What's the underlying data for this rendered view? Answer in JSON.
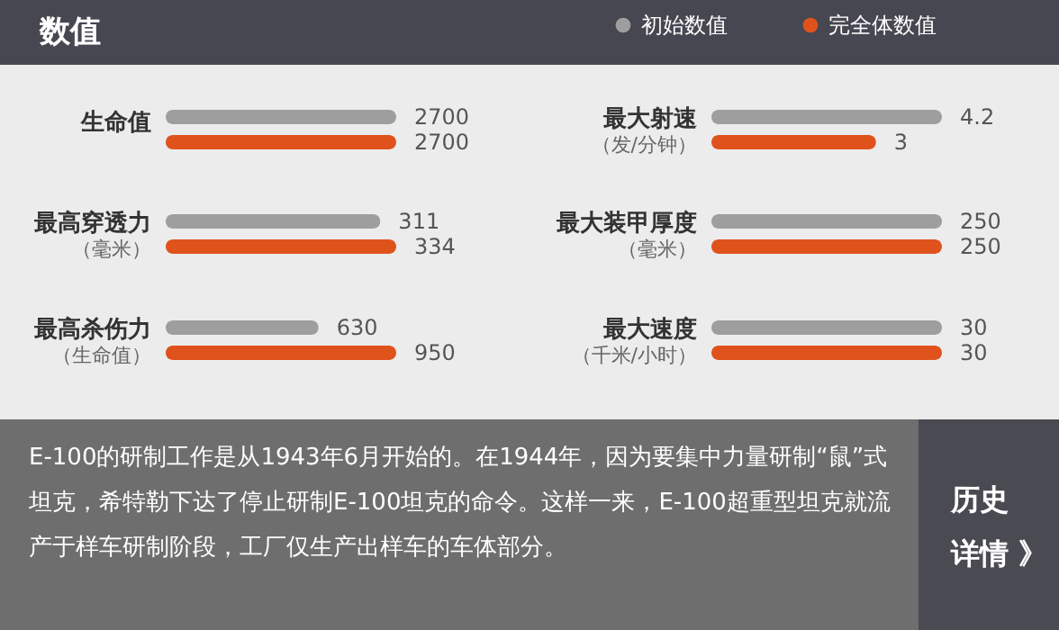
{
  "chart_data": [
    {
      "type": "bar",
      "orientation": "horizontal",
      "title": "数值",
      "legend": "top right",
      "categories": [
        "生命值"
      ],
      "tick_labels": false,
      "data_labels": true,
      "series": [
        {
          "name": "初始数值",
          "color": "#9e9e9e",
          "values": [
            2700
          ]
        },
        {
          "name": "完全体数值",
          "color": "#e0521c",
          "values": [
            2700
          ]
        }
      ]
    },
    {
      "type": "bar",
      "orientation": "horizontal",
      "categories": [
        "最大射速"
      ],
      "xlabel": "（发/分钟）",
      "tick_labels": false,
      "data_labels": true,
      "series": [
        {
          "color": "#9e9e9e",
          "values": [
            4.2
          ]
        },
        {
          "color": "#e0521c",
          "values": [
            3
          ]
        }
      ]
    },
    {
      "type": "bar",
      "orientation": "horizontal",
      "categories": [
        "最高穿透力"
      ],
      "xlabel": "（毫米）",
      "tick_labels": false,
      "data_labels": true,
      "series": [
        {
          "color": "#9e9e9e",
          "values": [
            311
          ]
        },
        {
          "color": "#e0521c",
          "values": [
            334
          ]
        }
      ]
    },
    {
      "type": "bar",
      "orientation": "horizontal",
      "categories": [
        "最大装甲厚度"
      ],
      "xlabel": "（毫米）",
      "tick_labels": false,
      "data_labels": true,
      "series": [
        {
          "color": "#9e9e9e",
          "values": [
            250
          ]
        },
        {
          "color": "#e0521c",
          "values": [
            250
          ]
        }
      ]
    },
    {
      "type": "bar",
      "orientation": "horizontal",
      "categories": [
        "最高杀伤力"
      ],
      "xlabel": "（生命值）",
      "tick_labels": false,
      "data_labels": true,
      "series": [
        {
          "color": "#9e9e9e",
          "values": [
            630
          ]
        },
        {
          "color": "#e0521c",
          "values": [
            950
          ]
        }
      ]
    },
    {
      "type": "bar",
      "orientation": "horizontal",
      "categories": [
        "最大速度"
      ],
      "xlabel": "（千米/小时）",
      "tick_labels": false,
      "data_labels": true,
      "series": [
        {
          "color": "#9e9e9e",
          "values": [
            30
          ]
        },
        {
          "color": "#e0521c",
          "values": [
            30
          ]
        }
      ]
    },
    {
      "type": "other",
      "annotations": [
        "E-100的研制工作是从1943年6月开始的。在1944年，因为要集中力量研制“鼠”式坦克，希特勒下达了停止研制E-100坦克的命令。这样一来，E-100超重型坦克就流产于样车研制阶段，工厂仅生产出样车的车体部分。",
        "历史",
        "详情 》"
      ]
    }
  ]
}
